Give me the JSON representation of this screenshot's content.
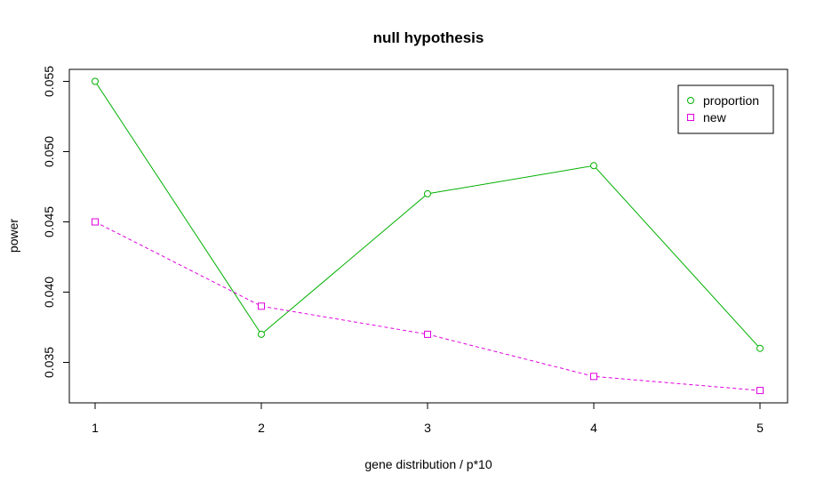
{
  "chart_data": {
    "type": "line",
    "title": "null hypothesis",
    "xlabel": "gene distribution / p*10",
    "ylabel": "power",
    "x": [
      1,
      2,
      3,
      4,
      5
    ],
    "xticks": [
      "1",
      "2",
      "3",
      "4",
      "5"
    ],
    "yticks": [
      "0.035",
      "0.040",
      "0.045",
      "0.050",
      "0.055"
    ],
    "ytick_values": [
      0.035,
      0.04,
      0.045,
      0.05,
      0.055
    ],
    "xlim": [
      1,
      5
    ],
    "ylim": [
      0.033,
      0.055
    ],
    "grid": false,
    "legend_position": "top-right",
    "series": [
      {
        "name": "proportion",
        "values": [
          0.055,
          0.037,
          0.047,
          0.049,
          0.036
        ],
        "color": "#00b000",
        "marker": "circle",
        "line": "solid"
      },
      {
        "name": "new",
        "values": [
          0.045,
          0.039,
          0.037,
          0.034,
          0.033
        ],
        "color": "#e000e0",
        "marker": "square",
        "line": "dashed"
      }
    ]
  }
}
